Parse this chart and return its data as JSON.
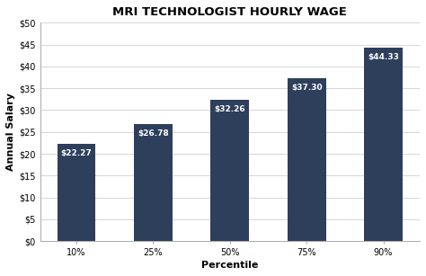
{
  "title": "MRI TECHNOLOGIST HOURLY WAGE",
  "categories": [
    "10%",
    "25%",
    "50%",
    "75%",
    "90%"
  ],
  "values": [
    22.27,
    26.78,
    32.26,
    37.3,
    44.33
  ],
  "labels": [
    "$22.27",
    "$26.78",
    "$32.26",
    "$37.30",
    "$44.33"
  ],
  "bar_color": "#2E3F5C",
  "xlabel": "Percentile",
  "ylabel": "Annual Salary",
  "ylim": [
    0,
    50
  ],
  "yticks": [
    0,
    5,
    10,
    15,
    20,
    25,
    30,
    35,
    40,
    45,
    50
  ],
  "background_color": "#ffffff",
  "grid_color": "#d0d0d0",
  "title_fontsize": 9.5,
  "axis_label_fontsize": 8,
  "tick_fontsize": 7,
  "bar_label_fontsize": 6.5,
  "bar_label_color": "#ffffff",
  "bar_width": 0.5
}
